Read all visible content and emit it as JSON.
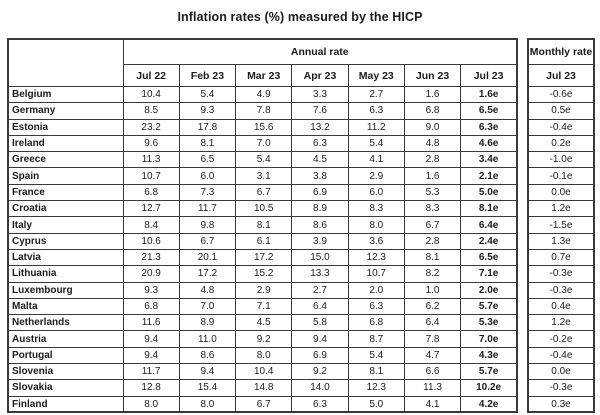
{
  "title": "Inflation rates (%) measured by the HICP",
  "table": {
    "annual_group_label": "Annual rate",
    "monthly_group_label": "Monthly rate",
    "columns": [
      "Jul 22",
      "Feb 23",
      "Mar 23",
      "Apr 23",
      "May 23",
      "Jun 23",
      "Jul 23"
    ],
    "monthly_column": "Jul 23",
    "rows": [
      {
        "country": "Belgium",
        "values": [
          "10.4",
          "5.4",
          "4.9",
          "3.3",
          "2.7",
          "1.6",
          "1.6e"
        ],
        "monthly": "-0.6e"
      },
      {
        "country": "Germany",
        "values": [
          "8.5",
          "9.3",
          "7.8",
          "7.6",
          "6.3",
          "6.8",
          "6.5e"
        ],
        "monthly": "0.5e"
      },
      {
        "country": "Estonia",
        "values": [
          "23.2",
          "17.8",
          "15.6",
          "13.2",
          "11.2",
          "9.0",
          "6.3e"
        ],
        "monthly": "-0.4e"
      },
      {
        "country": "Ireland",
        "values": [
          "9.6",
          "8.1",
          "7.0",
          "6.3",
          "5.4",
          "4.8",
          "4.6e"
        ],
        "monthly": "0.2e"
      },
      {
        "country": "Greece",
        "values": [
          "11.3",
          "6.5",
          "5.4",
          "4.5",
          "4.1",
          "2.8",
          "3.4e"
        ],
        "monthly": "-1.0e"
      },
      {
        "country": "Spain",
        "values": [
          "10.7",
          "6.0",
          "3.1",
          "3.8",
          "2.9",
          "1.6",
          "2.1e"
        ],
        "monthly": "-0.1e"
      },
      {
        "country": "France",
        "values": [
          "6.8",
          "7.3",
          "6.7",
          "6.9",
          "6.0",
          "5.3",
          "5.0e"
        ],
        "monthly": "0.0e"
      },
      {
        "country": "Croatia",
        "values": [
          "12.7",
          "11.7",
          "10.5",
          "8.9",
          "8.3",
          "8.3",
          "8.1e"
        ],
        "monthly": "1.2e"
      },
      {
        "country": "Italy",
        "values": [
          "8.4",
          "9.8",
          "8.1",
          "8.6",
          "8.0",
          "6.7",
          "6.4e"
        ],
        "monthly": "-1.5e"
      },
      {
        "country": "Cyprus",
        "values": [
          "10.6",
          "6.7",
          "6.1",
          "3.9",
          "3.6",
          "2.8",
          "2.4e"
        ],
        "monthly": "1.3e"
      },
      {
        "country": "Latvia",
        "values": [
          "21.3",
          "20.1",
          "17.2",
          "15.0",
          "12.3",
          "8.1",
          "6.5e"
        ],
        "monthly": "0.7e"
      },
      {
        "country": "Lithuania",
        "values": [
          "20.9",
          "17.2",
          "15.2",
          "13.3",
          "10.7",
          "8.2",
          "7.1e"
        ],
        "monthly": "-0.3e"
      },
      {
        "country": "Luxembourg",
        "values": [
          "9.3",
          "4.8",
          "2.9",
          "2.7",
          "2.0",
          "1.0",
          "2.0e"
        ],
        "monthly": "-0.3e"
      },
      {
        "country": "Malta",
        "values": [
          "6.8",
          "7.0",
          "7.1",
          "6.4",
          "6.3",
          "6.2",
          "5.7e"
        ],
        "monthly": "0.4e"
      },
      {
        "country": "Netherlands",
        "values": [
          "11.6",
          "8.9",
          "4.5",
          "5.8",
          "6.8",
          "6.4",
          "5.3e"
        ],
        "monthly": "1.2e"
      },
      {
        "country": "Austria",
        "values": [
          "9.4",
          "11.0",
          "9.2",
          "9.4",
          "8.7",
          "7.8",
          "7.0e"
        ],
        "monthly": "-0.2e"
      },
      {
        "country": "Portugal",
        "values": [
          "9.4",
          "8.6",
          "8.0",
          "6.9",
          "5.4",
          "4.7",
          "4.3e"
        ],
        "monthly": "-0.4e"
      },
      {
        "country": "Slovenia",
        "values": [
          "11.7",
          "9.4",
          "10.4",
          "9.2",
          "8.1",
          "6.6",
          "5.7e"
        ],
        "monthly": "0.0e"
      },
      {
        "country": "Slovakia",
        "values": [
          "12.8",
          "15.4",
          "14.8",
          "14.0",
          "12.3",
          "11.3",
          "10.2e"
        ],
        "monthly": "-0.3e"
      },
      {
        "country": "Finland",
        "values": [
          "8.0",
          "8.0",
          "6.7",
          "6.3",
          "5.0",
          "4.1",
          "4.2e"
        ],
        "monthly": "0.3e"
      }
    ]
  }
}
